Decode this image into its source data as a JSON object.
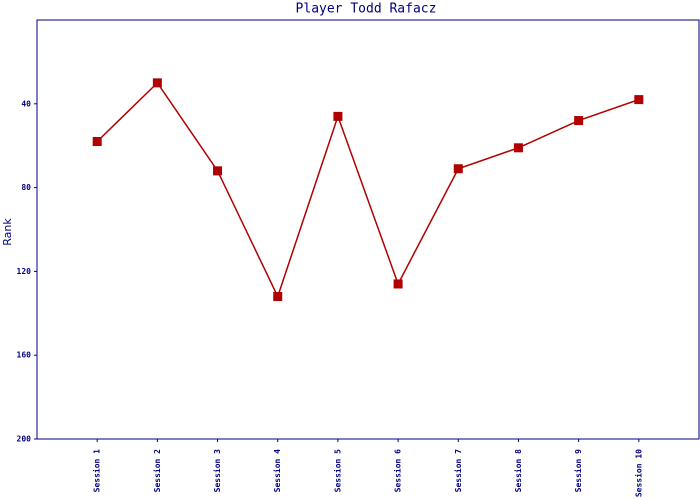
{
  "chart_data": {
    "type": "line",
    "title": "Player Todd Rafacz",
    "y_label": "Rank",
    "categories": [
      "Session 1",
      "Session 2",
      "Session 3",
      "Session 4",
      "Session 5",
      "Session 6",
      "Session 7",
      "Session 8",
      "Session 9",
      "Session 10"
    ],
    "series": [
      {
        "name": "Rank",
        "color": "#b00000",
        "values": [
          58,
          30,
          72,
          132,
          46,
          126,
          71,
          61,
          48,
          38
        ]
      }
    ],
    "ylim": [
      200,
      0
    ],
    "yticks": [
      40,
      80,
      120,
      160,
      200
    ]
  }
}
